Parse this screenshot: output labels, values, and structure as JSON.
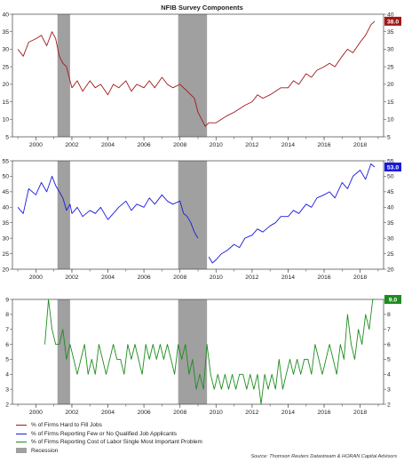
{
  "chart_data": {
    "title": "NFIB Survey Components",
    "source": "Source: Thomson Reuters Datastream & HORAN Capital Advisors",
    "x_ticks": [
      "2000",
      "2002",
      "2004",
      "2006",
      "2008",
      "2010",
      "2012",
      "2014",
      "2016",
      "2018"
    ],
    "recessions": [
      {
        "start": 2001.2,
        "end": 2001.9
      },
      {
        "start": 2007.9,
        "end": 2009.5
      }
    ],
    "recession_label": "Recession",
    "recession_color": "#a0a0a0",
    "panels": [
      {
        "type": "line",
        "series_name": "% of Firms Hard to Fill Jobs",
        "color": "#a01818",
        "ylim": [
          5,
          40
        ],
        "yticks": [
          "5",
          "10",
          "15",
          "20",
          "25",
          "30",
          "35",
          "40"
        ],
        "last_label": "38.0",
        "x": [
          1999.0,
          1999.3,
          1999.6,
          2000.0,
          2000.3,
          2000.6,
          2000.9,
          2001.1,
          2001.3,
          2001.5,
          2001.7,
          2001.9,
          2002.0,
          2002.3,
          2002.6,
          2003.0,
          2003.3,
          2003.6,
          2004.0,
          2004.3,
          2004.6,
          2005.0,
          2005.3,
          2005.6,
          2006.0,
          2006.3,
          2006.6,
          2007.0,
          2007.3,
          2007.6,
          2008.0,
          2008.2,
          2008.4,
          2008.6,
          2008.8,
          2009.0,
          2009.2,
          2009.4,
          2009.6,
          2009.8,
          2010.0,
          2010.3,
          2010.6,
          2011.0,
          2011.3,
          2011.6,
          2012.0,
          2012.3,
          2012.6,
          2013.0,
          2013.3,
          2013.6,
          2014.0,
          2014.3,
          2014.6,
          2015.0,
          2015.3,
          2015.6,
          2016.0,
          2016.3,
          2016.6,
          2017.0,
          2017.3,
          2017.6,
          2018.0,
          2018.3,
          2018.6,
          2018.8
        ],
        "values": [
          30,
          28,
          32,
          33,
          34,
          31,
          35,
          33,
          28,
          26,
          25,
          21,
          19,
          21,
          18,
          21,
          19,
          20,
          17,
          20,
          19,
          21,
          18,
          20,
          19,
          21,
          19,
          22,
          20,
          19,
          20,
          19,
          18,
          17,
          16,
          12,
          10,
          8,
          9,
          9,
          9,
          10,
          11,
          12,
          13,
          14,
          15,
          17,
          16,
          17,
          18,
          19,
          19,
          21,
          20,
          23,
          22,
          24,
          25,
          26,
          25,
          28,
          30,
          29,
          32,
          34,
          37,
          38
        ]
      },
      {
        "type": "line",
        "series_name": "% of Firms Reporting Few or No Qualified Job Applicants",
        "color": "#1a1adc",
        "ylim": [
          20,
          55
        ],
        "yticks": [
          "20",
          "25",
          "30",
          "35",
          "40",
          "45",
          "50",
          "55"
        ],
        "last_label": "53.0",
        "x": [
          1999.0,
          1999.3,
          1999.6,
          2000.0,
          2000.3,
          2000.6,
          2000.9,
          2001.1,
          2001.3,
          2001.5,
          2001.7,
          2001.9,
          2002.0,
          2002.3,
          2002.6,
          2003.0,
          2003.3,
          2003.6,
          2004.0,
          2004.3,
          2004.6,
          2005.0,
          2005.3,
          2005.6,
          2006.0,
          2006.3,
          2006.6,
          2007.0,
          2007.3,
          2007.6,
          2008.0,
          2008.2,
          2008.4,
          2008.6,
          2008.8,
          2009.0,
          2009.2,
          2009.4,
          2009.6,
          2009.8,
          2010.0,
          2010.3,
          2010.6,
          2011.0,
          2011.3,
          2011.6,
          2012.0,
          2012.3,
          2012.6,
          2013.0,
          2013.3,
          2013.6,
          2014.0,
          2014.3,
          2014.6,
          2015.0,
          2015.3,
          2015.6,
          2016.0,
          2016.3,
          2016.6,
          2017.0,
          2017.3,
          2017.6,
          2018.0,
          2018.3,
          2018.6,
          2018.8
        ],
        "values": [
          40,
          38,
          46,
          44,
          48,
          45,
          50,
          47,
          45,
          43,
          39,
          41,
          38,
          40,
          37,
          39,
          38,
          40,
          36,
          38,
          40,
          42,
          39,
          41,
          40,
          43,
          41,
          44,
          42,
          41,
          42,
          38,
          37,
          35,
          32,
          30,
          null,
          null,
          24,
          22,
          23,
          25,
          26,
          28,
          27,
          30,
          31,
          33,
          32,
          34,
          35,
          37,
          37,
          39,
          38,
          41,
          40,
          43,
          44,
          45,
          43,
          48,
          46,
          50,
          52,
          49,
          54,
          53
        ]
      },
      {
        "type": "line",
        "series_name": "% of Firms Reporting Cost of Labor Single Most Important Problem",
        "color": "#1e8c1e",
        "ylim": [
          2,
          9
        ],
        "yticks": [
          "2",
          "3",
          "4",
          "5",
          "6",
          "7",
          "8",
          "9"
        ],
        "last_label": "9.0",
        "x": [
          2000.5,
          2000.7,
          2000.9,
          2001.1,
          2001.3,
          2001.5,
          2001.7,
          2001.9,
          2002.1,
          2002.3,
          2002.5,
          2002.7,
          2002.9,
          2003.1,
          2003.3,
          2003.5,
          2003.7,
          2003.9,
          2004.1,
          2004.3,
          2004.5,
          2004.7,
          2004.9,
          2005.1,
          2005.3,
          2005.5,
          2005.7,
          2005.9,
          2006.1,
          2006.3,
          2006.5,
          2006.7,
          2006.9,
          2007.1,
          2007.3,
          2007.5,
          2007.7,
          2007.9,
          2008.1,
          2008.3,
          2008.5,
          2008.7,
          2008.9,
          2009.1,
          2009.3,
          2009.5,
          2009.7,
          2009.9,
          2010.1,
          2010.3,
          2010.5,
          2010.7,
          2010.9,
          2011.1,
          2011.3,
          2011.5,
          2011.7,
          2011.9,
          2012.1,
          2012.3,
          2012.5,
          2012.7,
          2012.9,
          2013.1,
          2013.3,
          2013.5,
          2013.7,
          2013.9,
          2014.1,
          2014.3,
          2014.5,
          2014.7,
          2014.9,
          2015.1,
          2015.3,
          2015.5,
          2015.7,
          2015.9,
          2016.1,
          2016.3,
          2016.5,
          2016.7,
          2016.9,
          2017.1,
          2017.3,
          2017.5,
          2017.7,
          2017.9,
          2018.1,
          2018.3,
          2018.5,
          2018.7,
          2018.8
        ],
        "values": [
          6,
          9,
          7,
          6,
          6,
          7,
          5,
          6,
          5,
          4,
          5,
          6,
          4,
          5,
          4,
          6,
          5,
          4,
          5,
          6,
          5,
          5,
          4,
          6,
          5,
          6,
          5,
          4,
          6,
          5,
          6,
          5,
          6,
          5,
          6,
          5,
          4,
          6,
          5,
          6,
          4,
          5,
          3,
          4,
          3,
          6,
          4,
          3,
          4,
          3,
          4,
          3,
          4,
          3,
          4,
          4,
          3,
          4,
          3,
          4,
          2,
          4,
          3,
          4,
          3,
          5,
          3,
          4,
          5,
          4,
          5,
          4,
          5,
          5,
          4,
          6,
          5,
          4,
          5,
          6,
          5,
          4,
          6,
          5,
          8,
          6,
          5,
          7,
          6,
          8,
          7,
          9,
          9
        ]
      }
    ]
  },
  "legend": [
    {
      "label": "% of Firms Hard to Fill Jobs",
      "color": "#a01818",
      "kind": "line"
    },
    {
      "label": "% of Firms Reporting Few or No Qualified Job Applicants",
      "color": "#1a1adc",
      "kind": "line"
    },
    {
      "label": "% of Firms Reporting Cost of Labor Single Most Important Problem",
      "color": "#1e8c1e",
      "kind": "line"
    },
    {
      "label": "Recession",
      "color": "#a0a0a0",
      "kind": "box"
    }
  ]
}
